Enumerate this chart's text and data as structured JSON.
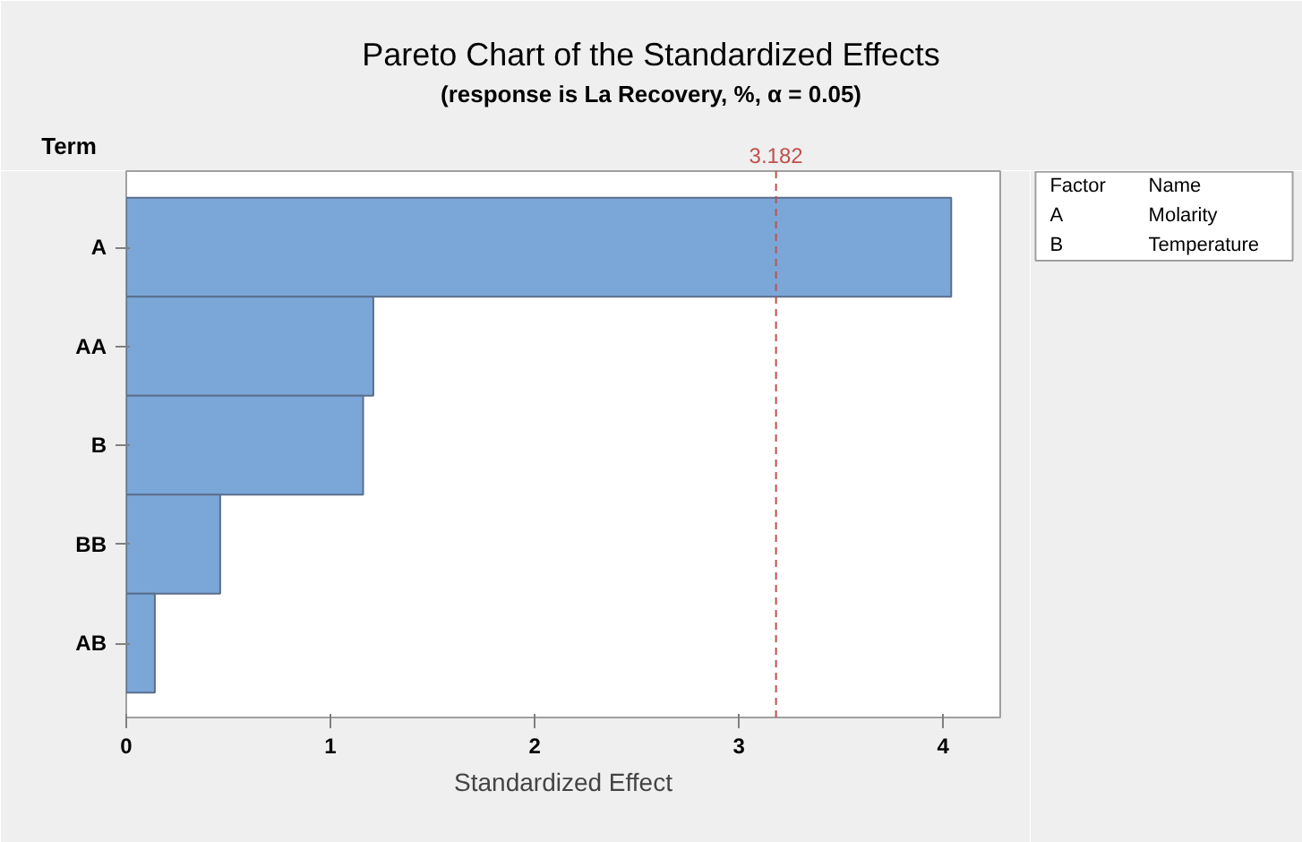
{
  "chart_data": {
    "type": "bar",
    "orientation": "horizontal",
    "title": "Pareto Chart of the Standardized Effects",
    "subtitle": "(response is La Recovery, %, α = 0.05)",
    "xlabel": "Standardized Effect",
    "ylabel": "Term",
    "categories": [
      "A",
      "AA",
      "B",
      "BB",
      "AB"
    ],
    "values": [
      4.04,
      1.21,
      1.16,
      0.46,
      0.14
    ],
    "color": "#7ba7d8",
    "xlim": [
      0,
      4.28
    ],
    "xticks": [
      0,
      1,
      2,
      3,
      4
    ],
    "grid": false,
    "legend": "right",
    "ref_lines": [
      {
        "axis": "x",
        "value": 3.182,
        "label": "3.182",
        "color": "#c0504d",
        "line_style": "dashed"
      }
    ],
    "annotations": [
      "Factor",
      "Name",
      "A",
      "Molarity",
      "B",
      "Temperature"
    ]
  }
}
